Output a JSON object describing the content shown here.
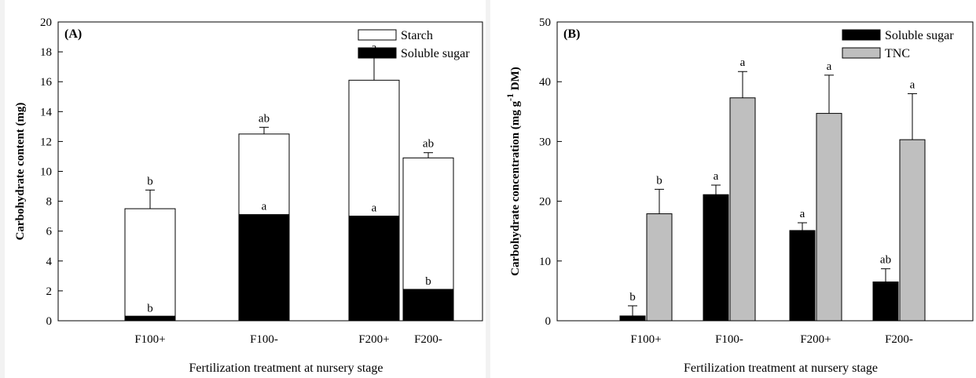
{
  "colors": {
    "starch": "#ffffff",
    "soluble_sugar": "#000000",
    "tnc": "#bfbfbf",
    "outline": "#000000"
  },
  "chart_data": [
    {
      "type": "bar",
      "stacked": true,
      "panel_label": "(A)",
      "categories": [
        "F100+",
        "F100-",
        "F200+",
        "F200-"
      ],
      "series": [
        {
          "name": "Soluble sugar",
          "values": [
            0.3,
            7.1,
            7.0,
            2.1
          ],
          "errors": [
            0,
            0,
            0,
            0
          ],
          "letters": [
            "b",
            "a",
            "a",
            "b"
          ]
        },
        {
          "name": "Starch",
          "values": [
            7.2,
            5.4,
            9.1,
            8.8
          ],
          "errors": [
            1.25,
            0.45,
            1.6,
            0.35
          ],
          "letters": [
            "b",
            "ab",
            "a",
            "ab"
          ]
        }
      ],
      "legend_order": [
        "Starch",
        "Soluble sugar"
      ],
      "xlabel": "Fertilization treatment at nursery stage",
      "ylabel": "Carbohydrate content (mg)",
      "ylim": [
        0,
        20
      ],
      "yticks": [
        0,
        2,
        4,
        6,
        8,
        10,
        12,
        14,
        16,
        18,
        20
      ],
      "legend_position": "top-right",
      "grid": false
    },
    {
      "type": "bar",
      "grouped": true,
      "panel_label": "(B)",
      "categories": [
        "F100+",
        "F100-",
        "F200+",
        "F200-"
      ],
      "series": [
        {
          "name": "Soluble sugar",
          "values": [
            0.8,
            21.1,
            15.1,
            6.5
          ],
          "errors": [
            1.7,
            1.6,
            1.3,
            2.2
          ],
          "letters": [
            "b",
            "a",
            "a",
            "ab"
          ]
        },
        {
          "name": "TNC",
          "values": [
            17.9,
            37.3,
            34.7,
            30.3
          ],
          "errors": [
            4.1,
            4.4,
            6.4,
            7.7
          ],
          "letters": [
            "b",
            "a",
            "a",
            "a"
          ]
        }
      ],
      "legend_order": [
        "Soluble sugar",
        "TNC"
      ],
      "xlabel": "Fertilization treatment at nursery stage",
      "ylabel": "Carbohydrate concentration (mg g",
      "ylabel_sup": "-1",
      "ylabel_suffix": " DM)",
      "ylim": [
        0,
        50
      ],
      "yticks": [
        0,
        10,
        20,
        30,
        40,
        50
      ],
      "legend_position": "top-right",
      "grid": false
    }
  ]
}
